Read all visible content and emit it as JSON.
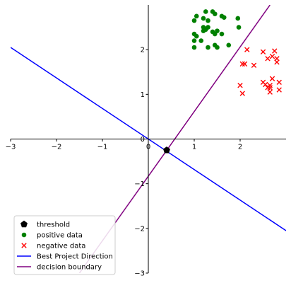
{
  "chart_data": {
    "type": "scatter",
    "title": "",
    "xlabel": "",
    "ylabel": "",
    "xlim": [
      -3,
      3
    ],
    "ylim": [
      -3,
      3
    ],
    "xticks": [
      -3,
      -2,
      -1,
      0,
      1,
      2
    ],
    "yticks": [
      -3,
      -2,
      -1,
      0,
      1,
      2
    ],
    "grid": false,
    "spines": "centered-at-origin",
    "legend_position": "lower-left",
    "series": [
      {
        "name": "threshold",
        "marker": "pentagon",
        "color": "#000000",
        "points": [
          [
            0.4,
            -0.25
          ]
        ]
      },
      {
        "name": "positive data",
        "marker": "circle",
        "color": "#008000",
        "points": [
          [
            1.0,
            2.65
          ],
          [
            1.05,
            2.75
          ],
          [
            1.0,
            2.35
          ],
          [
            1.05,
            2.3
          ],
          [
            1.0,
            2.2
          ],
          [
            1.0,
            2.05
          ],
          [
            1.15,
            2.2
          ],
          [
            1.2,
            2.7
          ],
          [
            1.2,
            2.5
          ],
          [
            1.25,
            2.45
          ],
          [
            1.2,
            2.42
          ],
          [
            1.25,
            2.85
          ],
          [
            1.3,
            2.65
          ],
          [
            1.3,
            2.5
          ],
          [
            1.3,
            2.05
          ],
          [
            1.4,
            2.85
          ],
          [
            1.45,
            2.8
          ],
          [
            1.4,
            2.4
          ],
          [
            1.5,
            2.42
          ],
          [
            1.45,
            2.35
          ],
          [
            1.45,
            2.1
          ],
          [
            1.5,
            2.05
          ],
          [
            1.6,
            2.35
          ],
          [
            1.6,
            2.75
          ],
          [
            1.65,
            2.72
          ],
          [
            1.75,
            2.1
          ],
          [
            1.95,
            2.7
          ],
          [
            1.97,
            2.5
          ]
        ]
      },
      {
        "name": "negative data",
        "marker": "x",
        "color": "#ff0000",
        "points": [
          [
            2.15,
            2.0
          ],
          [
            2.05,
            1.68
          ],
          [
            2.1,
            1.68
          ],
          [
            2.3,
            1.65
          ],
          [
            2.5,
            1.95
          ],
          [
            2.6,
            1.8
          ],
          [
            2.7,
            1.85
          ],
          [
            2.75,
            1.97
          ],
          [
            2.8,
            1.8
          ],
          [
            2.8,
            1.72
          ],
          [
            2.0,
            1.2
          ],
          [
            2.05,
            1.02
          ],
          [
            2.5,
            1.27
          ],
          [
            2.55,
            1.22
          ],
          [
            2.6,
            1.15
          ],
          [
            2.65,
            1.15
          ],
          [
            2.65,
            1.05
          ],
          [
            2.7,
            1.35
          ],
          [
            2.65,
            1.2
          ],
          [
            2.85,
            1.27
          ],
          [
            2.85,
            1.1
          ]
        ]
      },
      {
        "name": "Best Project Direction",
        "type": "line",
        "color": "#0000ff",
        "points": [
          [
            -3,
            2.05
          ],
          [
            3,
            -2.05
          ]
        ]
      },
      {
        "name": "decision boundary",
        "type": "line",
        "color": "#800080",
        "points": [
          [
            -1.5,
            -3.0
          ],
          [
            2.65,
            3.0
          ]
        ]
      }
    ]
  }
}
